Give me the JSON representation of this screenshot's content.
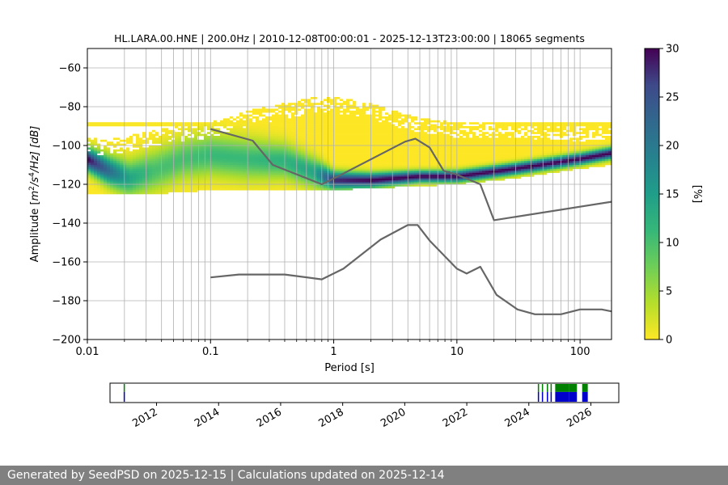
{
  "chart_data": [
    {
      "type": "heatmap",
      "title": "HL.LARA.00.HNE | 200.0Hz | 2010-12-08T00:00:01 - 2025-12-13T23:00:00 | 18065 segments",
      "xlabel": "Period [s]",
      "ylabel_parts": {
        "pre": "Amplitude [",
        "m": "m",
        "two": "2",
        "s": "/s",
        "four": "4",
        "hz": "/Hz] [dB]"
      },
      "x_scale": "log",
      "xlim": [
        0.01,
        180
      ],
      "ylim": [
        -200,
        -50
      ],
      "x_ticks": [
        {
          "value": 0.01,
          "label": "0.01"
        },
        {
          "value": 0.1,
          "label": "0.1"
        },
        {
          "value": 1,
          "label": "1"
        },
        {
          "value": 10,
          "label": "10"
        },
        {
          "value": 100,
          "label": "100"
        }
      ],
      "y_ticks": [
        {
          "value": -60,
          "label": "−60"
        },
        {
          "value": -80,
          "label": "−80"
        },
        {
          "value": -100,
          "label": "−100"
        },
        {
          "value": -120,
          "label": "−120"
        },
        {
          "value": -140,
          "label": "−140"
        },
        {
          "value": -160,
          "label": "−160"
        },
        {
          "value": -180,
          "label": "−180"
        },
        {
          "value": -200,
          "label": "−200"
        }
      ],
      "grid": true,
      "colormap": "viridis_r",
      "colorbar": {
        "label": "[%]",
        "range": [
          0,
          30
        ],
        "ticks": [
          {
            "value": 0,
            "label": "0"
          },
          {
            "value": 5,
            "label": "5"
          },
          {
            "value": 10,
            "label": "10"
          },
          {
            "value": 15,
            "label": "15"
          },
          {
            "value": 20,
            "label": "20"
          },
          {
            "value": 25,
            "label": "25"
          },
          {
            "value": 30,
            "label": "30"
          }
        ]
      },
      "density_ridge": [
        {
          "x": 0.01,
          "mode": -107,
          "width": 4,
          "peak": 30,
          "lo": -125,
          "hi": -96
        },
        {
          "x": 0.015,
          "mode": -113,
          "width": 5,
          "peak": 22,
          "lo": -125,
          "hi": -97
        },
        {
          "x": 0.022,
          "mode": -117,
          "width": 6,
          "peak": 14,
          "lo": -125,
          "hi": -95
        },
        {
          "x": 0.035,
          "mode": -113,
          "width": 7,
          "peak": 10,
          "lo": -125,
          "hi": -92
        },
        {
          "x": 0.06,
          "mode": -107,
          "width": 7,
          "peak": 10,
          "lo": -124,
          "hi": -90
        },
        {
          "x": 0.1,
          "mode": -105,
          "width": 7,
          "peak": 11,
          "lo": -123,
          "hi": -88
        },
        {
          "x": 0.2,
          "mode": -107,
          "width": 7,
          "peak": 11,
          "lo": -123,
          "hi": -82
        },
        {
          "x": 0.4,
          "mode": -108,
          "width": 6,
          "peak": 12,
          "lo": -123,
          "hi": -78
        },
        {
          "x": 0.7,
          "mode": -114,
          "width": 5,
          "peak": 14,
          "lo": -123,
          "hi": -75
        },
        {
          "x": 1.0,
          "mode": -118,
          "width": 3,
          "peak": 28,
          "lo": -123,
          "hi": -75
        },
        {
          "x": 2.0,
          "mode": -118,
          "width": 2.5,
          "peak": 30,
          "lo": -122,
          "hi": -78
        },
        {
          "x": 5.0,
          "mode": -116,
          "width": 2,
          "peak": 30,
          "lo": -121,
          "hi": -86
        },
        {
          "x": 10,
          "mode": -116,
          "width": 2,
          "peak": 30,
          "lo": -120,
          "hi": -88
        },
        {
          "x": 30,
          "mode": -112,
          "width": 2,
          "peak": 30,
          "lo": -117,
          "hi": -88
        },
        {
          "x": 100,
          "mode": -107,
          "width": 2,
          "peak": 30,
          "lo": -112,
          "hi": -90
        },
        {
          "x": 180,
          "mode": -104,
          "width": 2,
          "peak": 30,
          "lo": -110,
          "hi": -88
        }
      ],
      "sparse_band_y": -89,
      "series": [
        {
          "points": [
            [
              0.1,
              -91.5
            ],
            [
              0.22,
              -97.5
            ],
            [
              0.32,
              -110
            ],
            [
              0.8,
              -120
            ],
            [
              1.0,
              -117
            ],
            [
              3.8,
              -98
            ],
            [
              4.6,
              -96.5
            ],
            [
              6.0,
              -101
            ],
            [
              7.8,
              -113
            ],
            [
              10,
              -115
            ],
            [
              15.5,
              -120
            ],
            [
              20,
              -138.5
            ],
            [
              180,
              -129
            ]
          ]
        },
        {
          "points": [
            [
              0.1,
              -168
            ],
            [
              0.17,
              -166.5
            ],
            [
              0.4,
              -166.5
            ],
            [
              0.8,
              -169
            ],
            [
              1.2,
              -163.5
            ],
            [
              2.4,
              -148.5
            ],
            [
              4.0,
              -141
            ],
            [
              4.8,
              -141
            ],
            [
              6.0,
              -149
            ],
            [
              10,
              -163.5
            ],
            [
              12,
              -166
            ],
            [
              15.5,
              -162.5
            ],
            [
              21,
              -177
            ],
            [
              31,
              -184.5
            ],
            [
              43,
              -187
            ],
            [
              70,
              -187
            ],
            [
              100,
              -184.5
            ],
            [
              150,
              -184.5
            ],
            [
              180,
              -185.5
            ]
          ]
        }
      ]
    },
    {
      "type": "timeline",
      "x_range_years": [
        2010.5,
        2026.9
      ],
      "x_ticks": [
        {
          "value": 2012,
          "label": "2012"
        },
        {
          "value": 2014,
          "label": "2014"
        },
        {
          "value": 2016,
          "label": "2016"
        },
        {
          "value": 2018,
          "label": "2018"
        },
        {
          "value": 2020,
          "label": "2020"
        },
        {
          "value": 2022,
          "label": "2022"
        },
        {
          "value": 2024,
          "label": "2024"
        },
        {
          "value": 2026,
          "label": "2026"
        }
      ],
      "colors": {
        "data": "#0000cc",
        "processed": "#008000"
      },
      "segments": [
        {
          "start": 2010.94,
          "end": 2010.98,
          "fill": 1.0
        },
        {
          "start": 2024.29,
          "end": 2024.33,
          "fill": 1.0
        },
        {
          "start": 2024.42,
          "end": 2024.45,
          "fill": 1.0
        },
        {
          "start": 2024.58,
          "end": 2024.62,
          "fill": 1.0
        },
        {
          "start": 2024.7,
          "end": 2024.74,
          "fill": 1.0
        },
        {
          "start": 2024.85,
          "end": 2025.3,
          "fill": 1.0
        },
        {
          "start": 2025.3,
          "end": 2025.55,
          "fill": 1.0
        },
        {
          "start": 2025.72,
          "end": 2025.9,
          "fill": 1.0
        }
      ]
    }
  ],
  "footer": {
    "text": "Generated by SeedPSD on 2025-12-15 | Calculations updated on 2025-12-14"
  }
}
